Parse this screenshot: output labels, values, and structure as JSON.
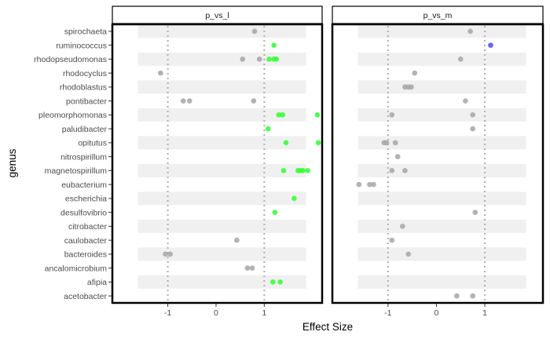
{
  "chart_data": {
    "type": "scatter",
    "xlabel": "Effect Size",
    "ylabel": "genus",
    "xlim": [
      -2.15,
      2.2
    ],
    "x_ticks": [
      -1,
      0,
      1
    ],
    "reference_lines": [
      -1,
      1
    ],
    "panels": [
      "p_vs_l",
      "p_vs_m"
    ],
    "genera": [
      "spirochaeta",
      "ruminococcus",
      "rhodopseudomonas",
      "rhodocyclus",
      "rhodoblastus",
      "pontibacter",
      "pleomorphomonas",
      "paludibacter",
      "opitutus",
      "nitrospirillum",
      "magnetospirillum",
      "eubacterium",
      "escherichia",
      "desulfovibrio",
      "citrobacter",
      "caulobacter",
      "bacteroides",
      "ancalomicrobium",
      "afipia",
      "acetobacter"
    ],
    "band_color": "#f0f0f0",
    "colors": {
      "grey": "#a6a6a6",
      "green": "#33ff33",
      "blue": "#4d4dff"
    },
    "points": [
      {
        "panel": "p_vs_l",
        "genus": "spirochaeta",
        "x": 0.8,
        "color": "grey"
      },
      {
        "panel": "p_vs_l",
        "genus": "ruminococcus",
        "x": 1.2,
        "color": "green"
      },
      {
        "panel": "p_vs_l",
        "genus": "rhodopseudomonas",
        "x": 0.55,
        "color": "grey"
      },
      {
        "panel": "p_vs_l",
        "genus": "rhodopseudomonas",
        "x": 0.9,
        "color": "grey"
      },
      {
        "panel": "p_vs_l",
        "genus": "rhodopseudomonas",
        "x": 1.1,
        "color": "green"
      },
      {
        "panel": "p_vs_l",
        "genus": "rhodopseudomonas",
        "x": 1.2,
        "color": "green"
      },
      {
        "panel": "p_vs_l",
        "genus": "rhodopseudomonas",
        "x": 1.25,
        "color": "green"
      },
      {
        "panel": "p_vs_l",
        "genus": "rhodocyclus",
        "x": -1.15,
        "color": "grey"
      },
      {
        "panel": "p_vs_l",
        "genus": "pontibacter",
        "x": -0.68,
        "color": "grey"
      },
      {
        "panel": "p_vs_l",
        "genus": "pontibacter",
        "x": -0.55,
        "color": "grey"
      },
      {
        "panel": "p_vs_l",
        "genus": "pontibacter",
        "x": 0.78,
        "color": "grey"
      },
      {
        "panel": "p_vs_l",
        "genus": "pleomorphomonas",
        "x": 1.3,
        "color": "green"
      },
      {
        "panel": "p_vs_l",
        "genus": "pleomorphomonas",
        "x": 1.38,
        "color": "green"
      },
      {
        "panel": "p_vs_l",
        "genus": "pleomorphomonas",
        "x": 2.1,
        "color": "green"
      },
      {
        "panel": "p_vs_l",
        "genus": "paludibacter",
        "x": 1.08,
        "color": "green"
      },
      {
        "panel": "p_vs_l",
        "genus": "opitutus",
        "x": 1.45,
        "color": "green"
      },
      {
        "panel": "p_vs_l",
        "genus": "opitutus",
        "x": 2.12,
        "color": "green"
      },
      {
        "panel": "p_vs_l",
        "genus": "magnetospirillum",
        "x": 1.4,
        "color": "green"
      },
      {
        "panel": "p_vs_l",
        "genus": "magnetospirillum",
        "x": 1.7,
        "color": "green"
      },
      {
        "panel": "p_vs_l",
        "genus": "magnetospirillum",
        "x": 1.75,
        "color": "green"
      },
      {
        "panel": "p_vs_l",
        "genus": "magnetospirillum",
        "x": 1.8,
        "color": "green"
      },
      {
        "panel": "p_vs_l",
        "genus": "magnetospirillum",
        "x": 1.9,
        "color": "green"
      },
      {
        "panel": "p_vs_l",
        "genus": "escherichia",
        "x": 1.62,
        "color": "green"
      },
      {
        "panel": "p_vs_l",
        "genus": "desulfovibrio",
        "x": 1.22,
        "color": "green"
      },
      {
        "panel": "p_vs_l",
        "genus": "caulobacter",
        "x": 0.43,
        "color": "grey"
      },
      {
        "panel": "p_vs_l",
        "genus": "bacteroides",
        "x": -1.05,
        "color": "grey"
      },
      {
        "panel": "p_vs_l",
        "genus": "bacteroides",
        "x": -0.95,
        "color": "grey"
      },
      {
        "panel": "p_vs_l",
        "genus": "ancalomicrobium",
        "x": 0.65,
        "color": "grey"
      },
      {
        "panel": "p_vs_l",
        "genus": "ancalomicrobium",
        "x": 0.75,
        "color": "grey"
      },
      {
        "panel": "p_vs_l",
        "genus": "afipia",
        "x": 1.18,
        "color": "green"
      },
      {
        "panel": "p_vs_l",
        "genus": "afipia",
        "x": 1.33,
        "color": "green"
      },
      {
        "panel": "p_vs_m",
        "genus": "spirochaeta",
        "x": 0.7,
        "color": "grey"
      },
      {
        "panel": "p_vs_m",
        "genus": "ruminococcus",
        "x": 1.12,
        "color": "blue"
      },
      {
        "panel": "p_vs_m",
        "genus": "rhodopseudomonas",
        "x": 0.5,
        "color": "grey"
      },
      {
        "panel": "p_vs_m",
        "genus": "rhodocyclus",
        "x": -0.45,
        "color": "grey"
      },
      {
        "panel": "p_vs_m",
        "genus": "rhodoblastus",
        "x": -0.65,
        "color": "grey"
      },
      {
        "panel": "p_vs_m",
        "genus": "rhodoblastus",
        "x": -0.58,
        "color": "grey"
      },
      {
        "panel": "p_vs_m",
        "genus": "rhodoblastus",
        "x": -0.52,
        "color": "grey"
      },
      {
        "panel": "p_vs_m",
        "genus": "pontibacter",
        "x": 0.6,
        "color": "grey"
      },
      {
        "panel": "p_vs_m",
        "genus": "pleomorphomonas",
        "x": -0.92,
        "color": "grey"
      },
      {
        "panel": "p_vs_m",
        "genus": "pleomorphomonas",
        "x": 0.75,
        "color": "grey"
      },
      {
        "panel": "p_vs_m",
        "genus": "paludibacter",
        "x": 0.75,
        "color": "grey"
      },
      {
        "panel": "p_vs_m",
        "genus": "opitutus",
        "x": -1.08,
        "color": "grey"
      },
      {
        "panel": "p_vs_m",
        "genus": "opitutus",
        "x": -1.03,
        "color": "grey"
      },
      {
        "panel": "p_vs_m",
        "genus": "opitutus",
        "x": -0.85,
        "color": "grey"
      },
      {
        "panel": "p_vs_m",
        "genus": "nitrospirillum",
        "x": -0.8,
        "color": "grey"
      },
      {
        "panel": "p_vs_m",
        "genus": "magnetospirillum",
        "x": -0.92,
        "color": "grey"
      },
      {
        "panel": "p_vs_m",
        "genus": "magnetospirillum",
        "x": -0.65,
        "color": "grey"
      },
      {
        "panel": "p_vs_m",
        "genus": "eubacterium",
        "x": -1.6,
        "color": "grey"
      },
      {
        "panel": "p_vs_m",
        "genus": "eubacterium",
        "x": -1.38,
        "color": "grey"
      },
      {
        "panel": "p_vs_m",
        "genus": "eubacterium",
        "x": -1.3,
        "color": "grey"
      },
      {
        "panel": "p_vs_m",
        "genus": "desulfovibrio",
        "x": 0.8,
        "color": "grey"
      },
      {
        "panel": "p_vs_m",
        "genus": "citrobacter",
        "x": -0.7,
        "color": "grey"
      },
      {
        "panel": "p_vs_m",
        "genus": "caulobacter",
        "x": -0.92,
        "color": "grey"
      },
      {
        "panel": "p_vs_m",
        "genus": "bacteroides",
        "x": -0.58,
        "color": "grey"
      },
      {
        "panel": "p_vs_m",
        "genus": "acetobacter",
        "x": 0.42,
        "color": "grey"
      },
      {
        "panel": "p_vs_m",
        "genus": "acetobacter",
        "x": 0.75,
        "color": "grey"
      }
    ]
  }
}
